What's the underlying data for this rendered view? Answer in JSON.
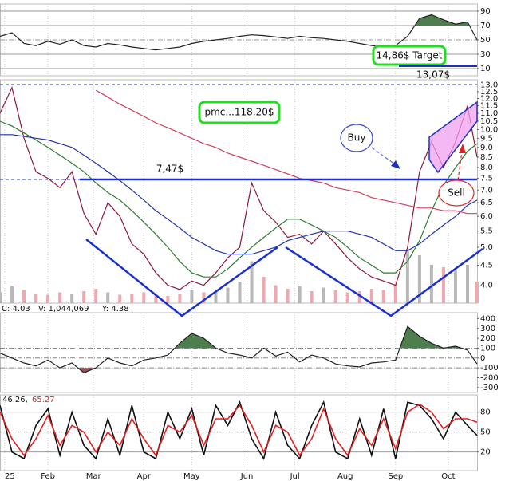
{
  "chart_data": [
    {
      "type": "line",
      "x": [
        0,
        5,
        10,
        15,
        20,
        25,
        30,
        35,
        40,
        45,
        50,
        55,
        60,
        65,
        70,
        75,
        80,
        85,
        90,
        95,
        100,
        105,
        110,
        115,
        120,
        125,
        130,
        135,
        140,
        145,
        150,
        155,
        160,
        165,
        170,
        175,
        180,
        185,
        190,
        195,
        199
      ],
      "series": [
        {
          "color": "#222222",
          "values": [
            55,
            60,
            45,
            42,
            48,
            44,
            50,
            42,
            40,
            45,
            43,
            40,
            38,
            36,
            38,
            40,
            45,
            48,
            50,
            52,
            55,
            57,
            56,
            54,
            52,
            55,
            53,
            52,
            50,
            48,
            45,
            42,
            40,
            42,
            55,
            80,
            85,
            78,
            72,
            75,
            50
          ]
        }
      ],
      "bands": [
        {
          "level": 70,
          "side": "above",
          "color": "#4e7d4e"
        },
        {
          "level": 30,
          "side": "below",
          "color": "#a05050"
        }
      ],
      "ylim": [
        0,
        100
      ],
      "yticks": [
        10,
        30,
        50,
        70,
        90
      ],
      "grid": true
    },
    {
      "type": "line",
      "log": true,
      "x": [
        0,
        5,
        10,
        15,
        20,
        25,
        30,
        35,
        40,
        45,
        50,
        55,
        60,
        65,
        70,
        75,
        80,
        85,
        90,
        95,
        100,
        105,
        110,
        115,
        120,
        125,
        130,
        135,
        140,
        145,
        150,
        155,
        160,
        165,
        170,
        175,
        180,
        185,
        190,
        195,
        199
      ],
      "series": [
        {
          "color": "#8b1a3a",
          "values": [
            11.0,
            12.8,
            9.5,
            7.8,
            7.5,
            7.1,
            7.8,
            6.1,
            5.4,
            6.5,
            6.0,
            5.1,
            4.8,
            4.3,
            4.0,
            3.9,
            4.1,
            4.0,
            4.3,
            4.7,
            5.0,
            7.3,
            6.2,
            5.8,
            5.3,
            5.4,
            5.1,
            5.5,
            5.1,
            4.7,
            4.4,
            4.2,
            4.1,
            4.0,
            5.0,
            7.8,
            9.3,
            8.0,
            9.3,
            11.5,
            8.5
          ]
        },
        {
          "color": "#2e7d32",
          "values": [
            10.5,
            10.2,
            9.8,
            9.4,
            9.0,
            8.6,
            8.2,
            7.8,
            7.3,
            6.9,
            6.6,
            6.2,
            5.8,
            5.4,
            5.0,
            4.6,
            4.3,
            4.2,
            4.2,
            4.4,
            4.7,
            5.0,
            5.3,
            5.6,
            5.9,
            5.9,
            5.7,
            5.5,
            5.3,
            5.0,
            4.7,
            4.5,
            4.3,
            4.3,
            4.6,
            5.2,
            6.2,
            7.2,
            8.0,
            8.8,
            9.2
          ]
        },
        {
          "color": "#2233aa",
          "values": [
            9.7,
            9.7,
            9.6,
            9.5,
            9.4,
            9.2,
            9.0,
            8.6,
            8.2,
            7.8,
            7.4,
            7.0,
            6.6,
            6.2,
            5.9,
            5.6,
            5.3,
            5.1,
            4.9,
            4.8,
            4.8,
            4.8,
            4.9,
            5.0,
            5.2,
            5.3,
            5.4,
            5.5,
            5.5,
            5.5,
            5.4,
            5.3,
            5.1,
            4.9,
            4.9,
            5.1,
            5.4,
            5.7,
            6.0,
            6.4,
            6.6
          ]
        },
        {
          "color": "#d04060",
          "values": [
            null,
            null,
            null,
            null,
            null,
            null,
            null,
            null,
            12.6,
            12.1,
            11.6,
            11.2,
            10.8,
            10.4,
            10.1,
            9.8,
            9.5,
            9.2,
            9.0,
            8.7,
            8.5,
            8.3,
            8.1,
            7.9,
            7.7,
            7.5,
            7.4,
            7.3,
            7.1,
            7.0,
            6.9,
            6.7,
            6.6,
            6.5,
            6.4,
            6.3,
            6.3,
            6.2,
            6.2,
            6.1,
            6.1
          ]
        }
      ],
      "volume": [
        900000,
        1400000,
        1100000,
        800000,
        700000,
        900000,
        800000,
        1000000,
        1200000,
        900000,
        700000,
        800000,
        900000,
        700000,
        600000,
        800000,
        1100000,
        900000,
        1000000,
        1300000,
        1800000,
        3500000,
        2200000,
        1500000,
        1200000,
        1400000,
        1000000,
        1300000,
        1100000,
        900000,
        1000000,
        1200000,
        1100000,
        1500000,
        4500000,
        4000000,
        3200000,
        3000000,
        2800000,
        3200000,
        1800000
      ],
      "vlim": [
        0,
        6000000
      ],
      "ylim": [
        3.6,
        13.4
      ],
      "yticks": [
        {
          "value": 4,
          "label": "4.0"
        },
        {
          "value": 4.5,
          "label": "4.5"
        },
        {
          "value": 5,
          "label": "5.0"
        },
        {
          "value": 5.5,
          "label": "5.5"
        },
        {
          "value": 6,
          "label": "6.0"
        },
        {
          "value": 6.5,
          "label": "6.5"
        },
        {
          "value": 7,
          "label": "7.0"
        },
        {
          "value": 7.5,
          "label": "7.5"
        },
        {
          "value": 8,
          "label": "8.0"
        },
        {
          "value": 8.5,
          "label": "8.5"
        },
        {
          "value": 9,
          "label": "9.0"
        },
        {
          "value": 9.5,
          "label": "9.5"
        },
        {
          "value": 10,
          "label": "10.0"
        },
        {
          "value": 10.5,
          "label": "10.5"
        },
        {
          "value": 11,
          "label": "11.0"
        },
        {
          "value": 11.5,
          "label": "11.5"
        },
        {
          "value": 12,
          "label": "12.0"
        },
        {
          "value": 12.5,
          "label": "12.5"
        },
        {
          "value": 13,
          "label": "13.0"
        }
      ],
      "grid": false,
      "status": [
        "C: 4.03",
        "V: 1,044,069",
        "Y: 4.38"
      ]
    },
    {
      "type": "line",
      "x": [
        0,
        5,
        10,
        15,
        20,
        25,
        30,
        35,
        40,
        45,
        50,
        55,
        60,
        65,
        70,
        75,
        80,
        85,
        90,
        95,
        100,
        105,
        110,
        115,
        120,
        125,
        130,
        135,
        140,
        145,
        150,
        155,
        160,
        165,
        170,
        175,
        180,
        185,
        190,
        195,
        199
      ],
      "series": [
        {
          "color": "#222222",
          "values": [
            50,
            0,
            -50,
            -80,
            -20,
            -100,
            -50,
            -150,
            -100,
            0,
            -50,
            -80,
            -20,
            0,
            30,
            150,
            250,
            200,
            100,
            50,
            30,
            0,
            100,
            20,
            60,
            -40,
            30,
            0,
            -60,
            -80,
            -90,
            -50,
            -40,
            -20,
            320,
            220,
            150,
            100,
            120,
            80,
            -60
          ]
        }
      ],
      "bands": [
        {
          "level": 100,
          "side": "above",
          "color": "#4e7d4e"
        },
        {
          "level": -100,
          "side": "below",
          "color": "#a05050"
        }
      ],
      "reflines": [
        100,
        0,
        -100
      ],
      "ylim": [
        -350,
        460
      ],
      "yticks": [
        400,
        300,
        200,
        100,
        0,
        -100,
        -200,
        -300
      ],
      "grid": false
    },
    {
      "type": "line",
      "x": [
        0,
        5,
        10,
        15,
        20,
        25,
        30,
        35,
        40,
        45,
        50,
        55,
        60,
        65,
        70,
        75,
        80,
        85,
        90,
        95,
        100,
        105,
        110,
        115,
        120,
        125,
        130,
        135,
        140,
        145,
        150,
        155,
        160,
        165,
        170,
        175,
        180,
        185,
        190,
        195,
        199
      ],
      "series": [
        {
          "color": "#111111",
          "values": [
            90,
            20,
            10,
            60,
            85,
            15,
            80,
            30,
            10,
            70,
            15,
            90,
            20,
            10,
            80,
            40,
            85,
            15,
            90,
            60,
            95,
            40,
            10,
            80,
            30,
            10,
            60,
            95,
            20,
            10,
            70,
            15,
            85,
            10,
            95,
            90,
            70,
            40,
            80,
            60,
            45
          ]
        },
        {
          "color": "#e02020",
          "values": [
            80,
            40,
            15,
            40,
            75,
            30,
            60,
            50,
            20,
            50,
            30,
            70,
            40,
            15,
            60,
            50,
            75,
            30,
            70,
            70,
            90,
            60,
            20,
            60,
            50,
            15,
            40,
            85,
            40,
            15,
            55,
            30,
            70,
            25,
            80,
            92,
            80,
            55,
            70,
            70,
            65
          ]
        }
      ],
      "readout": [
        "46.26,",
        "65.27"
      ],
      "ylim": [
        -8,
        106
      ],
      "yticks": [
        80,
        50,
        20
      ],
      "grid": true,
      "xlim": [
        0,
        199
      ],
      "xticks": [
        {
          "value": 2,
          "label": "25"
        },
        {
          "value": 20,
          "label": "Feb"
        },
        {
          "value": 39,
          "label": "Mar"
        },
        {
          "value": 60,
          "label": "Apr"
        },
        {
          "value": 80,
          "label": "May"
        },
        {
          "value": 103,
          "label": "Jun"
        },
        {
          "value": 123,
          "label": "Jul"
        },
        {
          "value": 144,
          "label": "Aug"
        },
        {
          "value": 165,
          "label": "Sep"
        },
        {
          "value": 187,
          "label": "Oct"
        }
      ]
    }
  ],
  "annotations": {
    "pmc": "pmc...118,20$",
    "support": "7,47$",
    "target": "14,86$ Target",
    "level": "13,07$",
    "buy": "Buy",
    "sell": "Sell"
  }
}
